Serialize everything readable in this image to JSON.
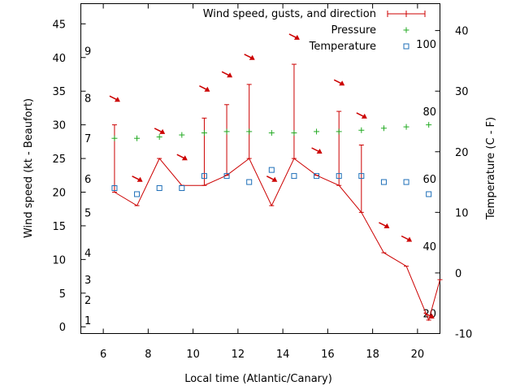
{
  "chart_data": {
    "type": "line",
    "xlabel": "Local time (Atlantic/Canary)",
    "ylabel": "Wind speed (kt - Beaufort)",
    "y2label": "Temperature (C - F)",
    "xlim": [
      5,
      21
    ],
    "ylim": [
      -1,
      48
    ],
    "y2lim": [
      -10,
      44.44
    ],
    "x_ticks": [
      6,
      8,
      10,
      12,
      14,
      16,
      18,
      20
    ],
    "y_ticks": [
      0,
      5,
      10,
      15,
      20,
      25,
      30,
      35,
      40,
      45
    ],
    "y2_ticks": [
      -10,
      0,
      10,
      20,
      30,
      40
    ],
    "beaufort_labels": [
      {
        "label": "1",
        "kt": 1
      },
      {
        "label": "2",
        "kt": 4
      },
      {
        "label": "3",
        "kt": 7
      },
      {
        "label": "4",
        "kt": 11
      },
      {
        "label": "5",
        "kt": 17
      },
      {
        "label": "6",
        "kt": 22
      },
      {
        "label": "7",
        "kt": 28
      },
      {
        "label": "8",
        "kt": 34
      },
      {
        "label": "9",
        "kt": 41
      }
    ],
    "fahrenheit_labels": [
      {
        "label": "20",
        "celsius": -6.67
      },
      {
        "label": "40",
        "celsius": 4.44
      },
      {
        "label": "60",
        "celsius": 15.56
      },
      {
        "label": "80",
        "celsius": 26.67
      },
      {
        "label": "100",
        "celsius": 37.78
      }
    ],
    "legend": [
      {
        "name": "Wind speed, gusts, and direction",
        "color": "#cc0000"
      },
      {
        "name": "Pressure",
        "color": "#22aa22"
      },
      {
        "name": "Temperature",
        "color": "#1f6fb8"
      }
    ],
    "series": [
      {
        "name": "Wind speed, gusts, and direction",
        "x": [
          6.5,
          7.5,
          8.5,
          9.5,
          10.5,
          11.5,
          12.5,
          13.5,
          14.5,
          15.5,
          16.5,
          17.5,
          18.5,
          19.5,
          20.5,
          21
        ],
        "values": [
          20,
          18,
          25,
          21,
          21,
          22.5,
          25,
          18,
          25,
          22.5,
          21,
          17,
          11,
          9,
          1,
          7
        ],
        "gusts": [
          30,
          18,
          25,
          21,
          31,
          33,
          36,
          18,
          39,
          22.5,
          32,
          27,
          11,
          9,
          1,
          null
        ]
      },
      {
        "name": "Pressure",
        "x": [
          6.5,
          7.5,
          8.5,
          9.5,
          10.5,
          11.5,
          12.5,
          13.5,
          14.5,
          15.5,
          16.5,
          17.5,
          18.5,
          19.5,
          20.5
        ],
        "values": [
          28,
          28,
          28.2,
          28.5,
          28.8,
          29,
          29,
          28.8,
          28.8,
          29,
          29,
          29.2,
          29.5,
          29.7,
          30
        ]
      },
      {
        "name": "Temperature",
        "x": [
          6.5,
          7.5,
          8.5,
          9.5,
          10.5,
          11.5,
          12.5,
          13.5,
          14.5,
          15.5,
          16.5,
          17.5,
          18.5,
          19.5,
          20.5
        ],
        "values": [
          14,
          13,
          14,
          14,
          16,
          16,
          15,
          17,
          16,
          16,
          16,
          16,
          15,
          15,
          13
        ]
      }
    ],
    "wind_arrows": [
      {
        "x": 6.5,
        "kt": 33.8
      },
      {
        "x": 7.5,
        "kt": 21.9
      },
      {
        "x": 8.5,
        "kt": 29.0
      },
      {
        "x": 9.5,
        "kt": 25.1
      },
      {
        "x": 10.5,
        "kt": 35.3
      },
      {
        "x": 11.5,
        "kt": 37.4
      },
      {
        "x": 12.5,
        "kt": 40.0
      },
      {
        "x": 13.5,
        "kt": 21.9
      },
      {
        "x": 14.5,
        "kt": 43.0
      },
      {
        "x": 15.5,
        "kt": 26.1
      },
      {
        "x": 16.5,
        "kt": 36.2
      },
      {
        "x": 17.5,
        "kt": 31.3
      },
      {
        "x": 18.5,
        "kt": 15.0
      },
      {
        "x": 19.5,
        "kt": 13.0
      },
      {
        "x": 20.5,
        "kt": 1.6
      }
    ]
  }
}
